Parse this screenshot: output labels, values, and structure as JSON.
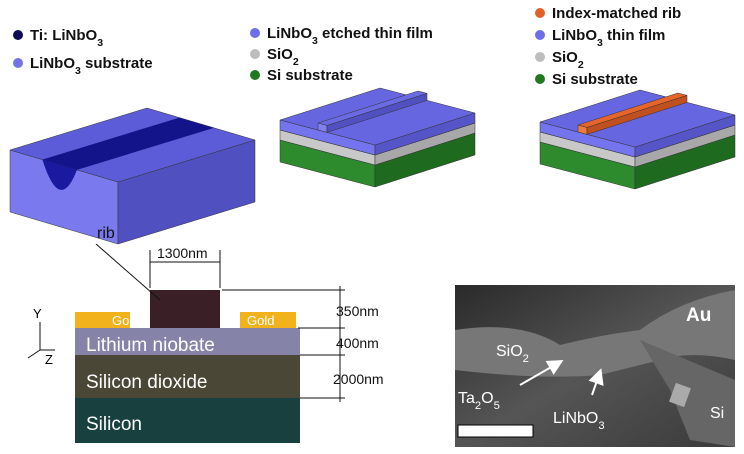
{
  "panels": [
    {
      "legend": [
        [
          "Ti: LiNbO",
          "3"
        ],
        [
          "LiNbO",
          "3",
          " substrate"
        ]
      ]
    },
    {
      "legend": [
        [
          "LiNbO",
          "3",
          " etched thin film"
        ],
        [
          "SiO",
          "2"
        ],
        [
          "Si substrate"
        ]
      ]
    },
    {
      "legend": [
        [
          "Index-matched rib"
        ],
        [
          "LiNbO",
          "3",
          " thin film"
        ],
        [
          "SiO",
          "2"
        ],
        [
          "Si substrate"
        ]
      ]
    }
  ],
  "cross_section": {
    "rib": "rib",
    "width": "1300nm",
    "gold_left": "Gold",
    "gold_right": "Gold",
    "layers": [
      "Lithium niobate",
      "Silicon dioxide",
      "Silicon"
    ],
    "dims": [
      "350nm",
      "400nm",
      "2000nm"
    ],
    "axis_y": "Y",
    "axis_z": "Z"
  },
  "sem": {
    "au": "Au",
    "sio2": [
      "SiO",
      "2"
    ],
    "ta2o5": [
      "Ta",
      "2",
      "O",
      "5"
    ],
    "linbo3": [
      "LiNbO",
      "3"
    ],
    "si": "Si"
  }
}
